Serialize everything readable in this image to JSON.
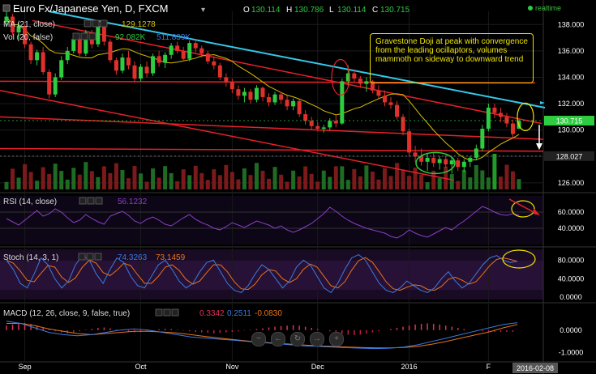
{
  "header": {
    "symbol": "Euro Fx/Japanese Yen, D, FXCM",
    "ohlc": [
      {
        "k": "O",
        "v": "130.114"
      },
      {
        "k": "H",
        "v": "130.786"
      },
      {
        "k": "L",
        "v": "130.114"
      },
      {
        "k": "C",
        "v": "130.715"
      }
    ],
    "realtime": "realtime"
  },
  "indicators": {
    "ma": {
      "label": "MA (21, close)",
      "value": "129.1278"
    },
    "vol": {
      "label": "Vol (20, false)",
      "v1": "92.082K",
      "v2": "511.839K"
    },
    "rsi": {
      "label": "RSI (14, close)",
      "value": "56.1232"
    },
    "stoch": {
      "label": "Stoch (14, 3, 1)",
      "k": "74.3263",
      "d": "73.1459"
    },
    "macd": {
      "label": "MACD (12, 26, close, 9, false, true)",
      "v1": "0.3342",
      "v2": "0.2511",
      "v3": "-0.0830"
    }
  },
  "annotation": "Gravestone Doji at peak with convergence from the leading ocillaptors, volumes mammoth on sideway to downward trend",
  "colors": {
    "up": "#2ecc40",
    "down": "#e0302c",
    "trend": "#e8202a",
    "cyan": "#36c8e8",
    "ma": "#d7c000",
    "annot": "#f0e500"
  },
  "chart_data": {
    "type": "candlestick",
    "x_labels": [
      "Sep",
      "Oct",
      "Nov",
      "Dec",
      "2016",
      "F"
    ],
    "date_marker": "2016-02-08",
    "price_axis": {
      "ticks": [
        "138.000",
        "136.000",
        "134.000",
        "132.000",
        "130.000",
        "128.000",
        "126.000"
      ],
      "ylim": [
        125.5,
        139
      ]
    },
    "price_labels": {
      "last": "130.715",
      "level": "128.027"
    },
    "rsi_axis": {
      "ticks": [
        "60.0000",
        "40.0000"
      ],
      "ylim": [
        20,
        80
      ]
    },
    "stoch_axis": {
      "ticks": [
        "80.0000",
        "40.0000",
        "0.0000"
      ],
      "ylim": [
        -5,
        100
      ]
    },
    "macd_axis": {
      "ticks": [
        "0.0000",
        "-1.0000"
      ],
      "ylim": [
        -1.3,
        1.0
      ]
    },
    "candles": [
      [
        138.2,
        139.0,
        137.8,
        138.6
      ],
      [
        138.6,
        138.8,
        137.2,
        137.4
      ],
      [
        137.4,
        138.2,
        136.9,
        137.9
      ],
      [
        137.9,
        138.0,
        136.2,
        136.5
      ],
      [
        136.5,
        136.7,
        135.0,
        135.3
      ],
      [
        135.3,
        136.1,
        134.9,
        135.9
      ],
      [
        135.9,
        136.3,
        134.2,
        134.4
      ],
      [
        134.4,
        134.6,
        132.4,
        132.7
      ],
      [
        132.7,
        134.3,
        132.5,
        134.0
      ],
      [
        134.0,
        135.6,
        133.8,
        135.3
      ],
      [
        135.3,
        136.3,
        135.0,
        136.0
      ],
      [
        136.0,
        137.2,
        135.8,
        136.9
      ],
      [
        136.9,
        137.0,
        135.6,
        135.8
      ],
      [
        135.8,
        137.6,
        135.6,
        137.4
      ],
      [
        137.4,
        137.6,
        136.2,
        136.5
      ],
      [
        136.5,
        138.2,
        136.3,
        137.9
      ],
      [
        137.9,
        138.1,
        136.4,
        136.7
      ],
      [
        136.7,
        136.9,
        135.1,
        135.3
      ],
      [
        135.3,
        135.5,
        134.2,
        134.5
      ],
      [
        134.5,
        135.8,
        134.3,
        135.5
      ],
      [
        135.5,
        136.0,
        134.6,
        134.9
      ],
      [
        134.9,
        135.2,
        133.6,
        133.9
      ],
      [
        133.9,
        135.0,
        133.7,
        134.8
      ],
      [
        134.8,
        135.2,
        134.0,
        134.3
      ],
      [
        134.3,
        135.8,
        134.1,
        135.6
      ],
      [
        135.6,
        136.0,
        134.8,
        135.1
      ],
      [
        135.1,
        135.9,
        134.7,
        135.7
      ],
      [
        135.7,
        136.6,
        135.4,
        136.4
      ],
      [
        136.4,
        136.7,
        135.8,
        136.0
      ],
      [
        136.0,
        136.3,
        135.2,
        135.4
      ],
      [
        135.4,
        136.8,
        135.2,
        136.6
      ],
      [
        136.6,
        136.9,
        135.9,
        136.2
      ],
      [
        136.2,
        136.4,
        135.5,
        135.8
      ],
      [
        135.8,
        136.0,
        135.0,
        135.2
      ],
      [
        135.2,
        135.6,
        134.6,
        134.9
      ],
      [
        134.9,
        135.1,
        133.8,
        134.0
      ],
      [
        134.0,
        134.3,
        133.3,
        133.6
      ],
      [
        133.6,
        133.9,
        132.8,
        133.1
      ],
      [
        133.1,
        133.4,
        132.3,
        132.6
      ],
      [
        132.6,
        133.2,
        132.1,
        132.9
      ],
      [
        132.9,
        133.1,
        132.0,
        132.3
      ],
      [
        132.3,
        133.4,
        132.1,
        133.2
      ],
      [
        133.2,
        133.3,
        132.2,
        132.5
      ],
      [
        132.5,
        132.8,
        131.8,
        132.1
      ],
      [
        132.1,
        132.9,
        131.9,
        132.7
      ],
      [
        132.7,
        132.9,
        132.0,
        132.3
      ],
      [
        132.3,
        132.6,
        131.5,
        131.8
      ],
      [
        131.8,
        132.4,
        131.5,
        132.2
      ],
      [
        132.2,
        132.3,
        131.0,
        131.2
      ],
      [
        131.2,
        131.5,
        130.4,
        130.7
      ],
      [
        130.7,
        131.0,
        130.0,
        130.3
      ],
      [
        130.3,
        130.6,
        129.9,
        130.1
      ],
      [
        130.1,
        130.4,
        129.8,
        130.2
      ],
      [
        130.2,
        130.9,
        130.0,
        130.7
      ],
      [
        130.7,
        131.2,
        130.2,
        130.5
      ],
      [
        130.5,
        133.9,
        130.4,
        133.7
      ],
      [
        133.7,
        134.9,
        133.3,
        134.3
      ],
      [
        134.3,
        134.6,
        133.6,
        133.9
      ],
      [
        133.9,
        134.1,
        133.2,
        133.5
      ],
      [
        133.5,
        134.0,
        132.9,
        133.7
      ],
      [
        133.7,
        133.8,
        132.8,
        133.0
      ],
      [
        133.0,
        133.4,
        132.4,
        132.6
      ],
      [
        132.6,
        133.0,
        131.8,
        132.1
      ],
      [
        132.1,
        132.5,
        131.6,
        131.9
      ],
      [
        131.9,
        132.2,
        130.8,
        131.0
      ],
      [
        131.0,
        131.2,
        129.6,
        129.9
      ],
      [
        129.9,
        130.1,
        128.0,
        128.3
      ],
      [
        128.3,
        128.8,
        127.6,
        128.0
      ],
      [
        128.0,
        128.6,
        127.3,
        127.6
      ],
      [
        127.6,
        128.2,
        126.9,
        127.9
      ],
      [
        127.9,
        128.3,
        127.2,
        127.5
      ],
      [
        127.5,
        128.0,
        127.0,
        127.8
      ],
      [
        127.8,
        128.1,
        127.1,
        127.4
      ],
      [
        127.4,
        127.9,
        126.7,
        127.7
      ],
      [
        127.7,
        127.9,
        126.9,
        127.2
      ],
      [
        127.2,
        127.8,
        126.8,
        127.6
      ],
      [
        127.6,
        128.0,
        127.2,
        127.9
      ],
      [
        127.9,
        128.9,
        127.7,
        128.6
      ],
      [
        128.6,
        130.4,
        128.4,
        130.1
      ],
      [
        130.1,
        132.0,
        129.9,
        131.7
      ],
      [
        131.7,
        132.0,
        130.9,
        131.3
      ],
      [
        131.3,
        131.7,
        130.6,
        131.0
      ],
      [
        131.0,
        131.3,
        130.2,
        130.5
      ],
      [
        130.5,
        130.8,
        129.4,
        129.7
      ],
      [
        130.1,
        130.8,
        130.1,
        130.7
      ]
    ]
  }
}
